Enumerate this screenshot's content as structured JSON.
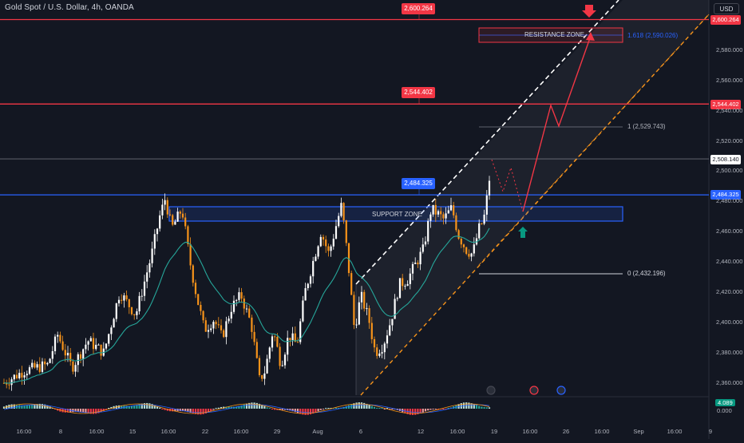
{
  "header": {
    "symbol_title": "Gold Spot / U.S. Dollar, 4h, OANDA",
    "currency_button": "USD"
  },
  "colors": {
    "background": "#131722",
    "red": "#f23645",
    "blue": "#2962ff",
    "bull": "#ffffff",
    "bear": "#f7931a",
    "ma": "#26a69a",
    "fib": "#787b86",
    "dashed_orange": "#f7931a",
    "dashed_white": "#ffffff",
    "teal_arrow": "#089981"
  },
  "chart_data": {
    "type": "candlestick",
    "y_axis": {
      "min": 2348,
      "max": 2604,
      "ticks": [
        "2,360.000",
        "2,380.000",
        "2,400.000",
        "2,420.000",
        "2,440.000",
        "2,460.000",
        "2,480.000",
        "2,500.000",
        "2,520.000",
        "2,540.000",
        "2,560.000",
        "2,580.000"
      ]
    },
    "x_axis": {
      "ticks": [
        "16:00",
        "8",
        "16:00",
        "15",
        "16:00",
        "22",
        "16:00",
        "29",
        "Aug",
        "6",
        "12",
        "16:00",
        "19",
        "16:00",
        "26",
        "16:00",
        "Sep",
        "16:00",
        "9"
      ]
    },
    "price_tags": {
      "top_red": "2,600.264",
      "upper_red": "2,544.402",
      "last": "2,508.140",
      "blue": "2,484.325"
    },
    "line_labels": {
      "top_red": "2,600.264",
      "upper_red": "2,544.402",
      "blue": "2,484.325"
    },
    "zones": {
      "resistance": "RESISTANCE ZONE",
      "support": "SUPPORT ZONE"
    },
    "fib_levels": {
      "f1618": "1.618 (2,590.026)",
      "f1": "1 (2,529.743)",
      "f0": "0 (2,432.196)"
    },
    "indicator": {
      "value": "4.089",
      "zero": "0.000"
    }
  }
}
